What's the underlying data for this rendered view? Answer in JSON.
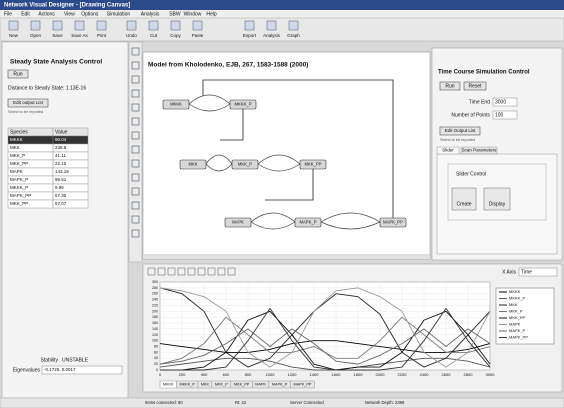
{
  "window": {
    "title": "Network Visual Designer - [Drawing Canvas]"
  },
  "menu": [
    "File",
    "Edit",
    "Actions",
    "View",
    "Options",
    "Simulation",
    "Analysis",
    "SBW",
    "Window",
    "Help"
  ],
  "toolbar": [
    "New",
    "Open",
    "Save",
    "Save As",
    "Print",
    "Undo",
    "Cut",
    "Copy",
    "Paste",
    "Export",
    "Analysis",
    "Graph"
  ],
  "steady_state": {
    "title": "Steady State Analysis Control",
    "run": "Run",
    "distance": "Distance to Steady State: 1.13E-16",
    "edit": "Edit output List",
    "hint": "Select to be reported",
    "table": {
      "columns": [
        "Species",
        "Value"
      ],
      "rows": [
        [
          "MKKK",
          "90.04"
        ],
        [
          "MKK",
          "236.8"
        ],
        [
          "MKK_P",
          "41.11"
        ],
        [
          "MKK_PP",
          "22.10"
        ],
        [
          "MAPK",
          "143.19"
        ],
        [
          "MAPK_P",
          "99.51"
        ],
        [
          "MKKK_P",
          "9.96"
        ],
        [
          "MAPK_PP",
          "57.30"
        ],
        [
          "MKK_PP",
          "57.07"
        ]
      ]
    },
    "stability_label": "Stability",
    "stability": "UNSTABLE",
    "eigen_label": "Eigenvalues",
    "eigen": "-0.1725, 0.0017"
  },
  "canvas": {
    "title": "Model from Kholodenko, EJB, 267, 1583-1588 (2000)",
    "nodes": [
      "MKKK",
      "MKKK_P",
      "MKK",
      "MKK_P",
      "MKK_PP",
      "MAPK",
      "MAPK_P",
      "MAPK_PP"
    ]
  },
  "time_course": {
    "title": "Time Course Simulation Control",
    "run": "Run",
    "reset": "Reset",
    "time_end_label": "Time End",
    "time_end": "3000",
    "points_label": "Number of Points",
    "points": "100",
    "edit": "Edit Output List",
    "hint": "Select to be reported",
    "tabs": [
      "Slider",
      "Scan Parameters"
    ],
    "slider_title": "Slider Control",
    "create": "Create",
    "display": "Display"
  },
  "x_axis": {
    "label": "X Axis",
    "value": "Time"
  },
  "chart_data": {
    "type": "line",
    "x": [
      0,
      200,
      400,
      600,
      800,
      1000,
      1200,
      1400,
      1600,
      1800,
      2000,
      2200,
      2400,
      2600,
      2800,
      3000
    ],
    "xlim": [
      0,
      3000
    ],
    "ylim": [
      0,
      300
    ],
    "xticks": [
      0,
      200,
      400,
      600,
      800,
      1000,
      1200,
      1400,
      1600,
      1800,
      2000,
      2200,
      2400,
      2600,
      2800,
      3000
    ],
    "yticks": [
      0,
      20,
      40,
      60,
      80,
      100,
      120,
      140,
      160,
      180,
      200,
      220,
      240,
      260,
      280,
      300
    ],
    "grid": true,
    "series": [
      {
        "name": "MKKK",
        "color": "#000000",
        "values": [
          90,
          80,
          70,
          60,
          60,
          70,
          90,
          100,
          100,
          90,
          80,
          70,
          60,
          60,
          70,
          90
        ]
      },
      {
        "name": "MKKK_P",
        "color": "#555555",
        "values": [
          10,
          20,
          30,
          40,
          40,
          30,
          10,
          0,
          0,
          10,
          20,
          30,
          40,
          40,
          30,
          10
        ]
      },
      {
        "name": "MKK",
        "color": "#222222",
        "values": [
          280,
          260,
          200,
          60,
          10,
          40,
          120,
          200,
          260,
          250,
          190,
          60,
          10,
          40,
          120,
          200
        ]
      },
      {
        "name": "MKK_P",
        "color": "#777777",
        "values": [
          20,
          40,
          90,
          180,
          120,
          60,
          60,
          80,
          40,
          40,
          100,
          180,
          120,
          60,
          60,
          80
        ]
      },
      {
        "name": "MKK_PP",
        "color": "#111111",
        "values": [
          0,
          0,
          10,
          60,
          170,
          200,
          120,
          20,
          0,
          10,
          10,
          60,
          170,
          200,
          120,
          20
        ]
      },
      {
        "name": "MAPK",
        "color": "#999999",
        "values": [
          280,
          270,
          250,
          200,
          60,
          10,
          60,
          200,
          270,
          280,
          250,
          200,
          60,
          10,
          60,
          200
        ]
      },
      {
        "name": "MAPK_P",
        "color": "#666666",
        "values": [
          20,
          30,
          50,
          90,
          140,
          80,
          140,
          90,
          30,
          20,
          50,
          90,
          140,
          80,
          140,
          90
        ]
      },
      {
        "name": "MAPK_PP",
        "color": "#333333",
        "values": [
          0,
          0,
          0,
          10,
          100,
          210,
          100,
          10,
          0,
          0,
          0,
          10,
          100,
          210,
          100,
          10
        ]
      }
    ]
  },
  "status": [
    "Items connected: 80",
    "Rt: 22",
    "Server Connected",
    "Network Depth: 2399"
  ]
}
